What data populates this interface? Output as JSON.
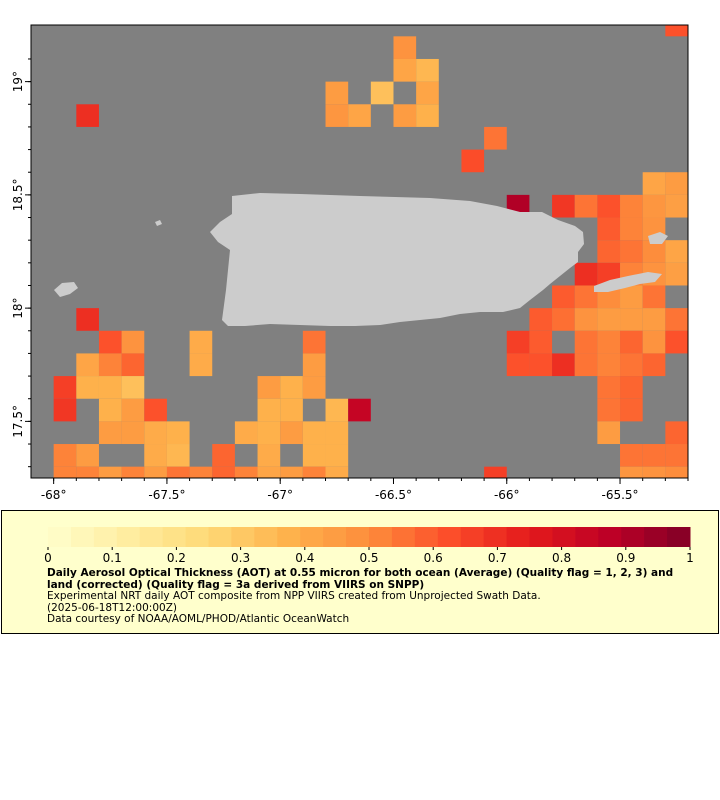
{
  "map": {
    "lon_range": [
      -68.1,
      -65.2
    ],
    "lat_range": [
      17.25,
      19.25
    ],
    "x_ticks": [
      {
        "value": -68,
        "label": "-68°"
      },
      {
        "value": -67.5,
        "label": "-67.5°"
      },
      {
        "value": -67,
        "label": "-67°"
      },
      {
        "value": -66.5,
        "label": "-66.5°"
      },
      {
        "value": -66,
        "label": "-66°"
      },
      {
        "value": -65.5,
        "label": "-65.5°"
      }
    ],
    "y_ticks": [
      {
        "value": 19,
        "label": "19°"
      },
      {
        "value": 18.5,
        "label": "18.5°"
      },
      {
        "value": 18,
        "label": "18°"
      },
      {
        "value": 17.5,
        "label": "17.5°"
      }
    ],
    "colors": {
      "no_data": "#808080",
      "land": "#cccccc",
      "frame": "#000000"
    }
  },
  "legend": {
    "cb_ticks": [
      "0",
      "0.1",
      "0.2",
      "0.3",
      "0.4",
      "0.5",
      "0.6",
      "0.7",
      "0.8",
      "0.9",
      "1"
    ],
    "title": "Daily Aerosol Optical Thickness (AOT) at 0.55 micron for both ocean (Average) (Quality flag = 1, 2, 3) and land (corrected) (Quality flag = 3a derived from VIIRS on SNPP)",
    "line1": "Experimental NRT daily AOT composite from NPP VIIRS created from Unprojected Swath Data.",
    "line2": "(2025-06-18T12:00:00Z)",
    "line3": "Data courtesy of NOAA/AOML/PHOD/Atlantic OceanWatch"
  },
  "chart_data": {
    "type": "heatmap",
    "cell_size_deg": 0.1,
    "value_range": [
      0,
      1
    ],
    "cells": [
      [
        -66.45,
        19.15,
        0.48
      ],
      [
        -66.45,
        19.05,
        0.42
      ],
      [
        -66.35,
        19.05,
        0.36
      ],
      [
        -66.75,
        18.95,
        0.45
      ],
      [
        -66.55,
        18.95,
        0.33
      ],
      [
        -66.35,
        18.95,
        0.42
      ],
      [
        -66.75,
        18.85,
        0.47
      ],
      [
        -66.65,
        18.85,
        0.42
      ],
      [
        -66.45,
        18.85,
        0.45
      ],
      [
        -66.35,
        18.85,
        0.38
      ],
      [
        -67.85,
        18.85,
        0.7
      ],
      [
        -66.05,
        18.75,
        0.55
      ],
      [
        -66.15,
        18.65,
        0.63
      ],
      [
        -65.25,
        19.25,
        0.62
      ],
      [
        -65.35,
        18.55,
        0.42
      ],
      [
        -65.25,
        18.55,
        0.45
      ],
      [
        -65.95,
        18.45,
        0.9
      ],
      [
        -65.75,
        18.45,
        0.68
      ],
      [
        -65.65,
        18.45,
        0.55
      ],
      [
        -65.55,
        18.45,
        0.62
      ],
      [
        -65.45,
        18.45,
        0.52
      ],
      [
        -65.35,
        18.45,
        0.47
      ],
      [
        -65.25,
        18.45,
        0.44
      ],
      [
        -65.55,
        18.35,
        0.6
      ],
      [
        -65.45,
        18.35,
        0.52
      ],
      [
        -65.35,
        18.35,
        0.48
      ],
      [
        -65.55,
        18.25,
        0.58
      ],
      [
        -65.45,
        18.25,
        0.55
      ],
      [
        -65.35,
        18.25,
        0.5
      ],
      [
        -65.25,
        18.25,
        0.42
      ],
      [
        -65.65,
        18.15,
        0.7
      ],
      [
        -65.55,
        18.15,
        0.66
      ],
      [
        -65.45,
        18.15,
        0.52
      ],
      [
        -65.35,
        18.15,
        0.48
      ],
      [
        -65.25,
        18.15,
        0.44
      ],
      [
        -65.75,
        18.05,
        0.6
      ],
      [
        -65.65,
        18.05,
        0.55
      ],
      [
        -65.55,
        18.05,
        0.5
      ],
      [
        -65.45,
        18.05,
        0.45
      ],
      [
        -65.35,
        18.05,
        0.55
      ],
      [
        -65.85,
        17.95,
        0.6
      ],
      [
        -65.75,
        17.95,
        0.56
      ],
      [
        -65.65,
        17.95,
        0.48
      ],
      [
        -65.55,
        17.95,
        0.45
      ],
      [
        -65.45,
        17.95,
        0.45
      ],
      [
        -65.35,
        17.95,
        0.45
      ],
      [
        -65.25,
        17.95,
        0.55
      ],
      [
        -65.95,
        17.85,
        0.66
      ],
      [
        -65.85,
        17.85,
        0.6
      ],
      [
        -65.65,
        17.85,
        0.55
      ],
      [
        -65.55,
        17.85,
        0.52
      ],
      [
        -65.45,
        17.85,
        0.58
      ],
      [
        -65.35,
        17.85,
        0.48
      ],
      [
        -65.25,
        17.85,
        0.62
      ],
      [
        -65.95,
        17.75,
        0.62
      ],
      [
        -65.85,
        17.75,
        0.62
      ],
      [
        -65.75,
        17.75,
        0.7
      ],
      [
        -65.65,
        17.75,
        0.55
      ],
      [
        -65.55,
        17.75,
        0.52
      ],
      [
        -65.45,
        17.75,
        0.55
      ],
      [
        -65.35,
        17.75,
        0.58
      ],
      [
        -65.55,
        17.65,
        0.55
      ],
      [
        -65.45,
        17.65,
        0.58
      ],
      [
        -65.55,
        17.55,
        0.55
      ],
      [
        -65.45,
        17.55,
        0.58
      ],
      [
        -65.55,
        17.45,
        0.45
      ],
      [
        -65.45,
        17.35,
        0.55
      ],
      [
        -65.25,
        17.45,
        0.58
      ],
      [
        -65.35,
        17.35,
        0.55
      ],
      [
        -65.25,
        17.35,
        0.55
      ],
      [
        -65.45,
        17.25,
        0.47
      ],
      [
        -65.35,
        17.25,
        0.48
      ],
      [
        -65.25,
        17.25,
        0.5
      ],
      [
        -67.85,
        17.95,
        0.7
      ],
      [
        -67.75,
        17.85,
        0.62
      ],
      [
        -67.65,
        17.85,
        0.48
      ],
      [
        -67.85,
        17.75,
        0.42
      ],
      [
        -67.75,
        17.75,
        0.52
      ],
      [
        -67.65,
        17.75,
        0.58
      ],
      [
        -67.95,
        17.65,
        0.66
      ],
      [
        -67.85,
        17.65,
        0.38
      ],
      [
        -67.75,
        17.65,
        0.38
      ],
      [
        -67.65,
        17.65,
        0.33
      ],
      [
        -67.95,
        17.55,
        0.68
      ],
      [
        -67.75,
        17.55,
        0.38
      ],
      [
        -67.65,
        17.55,
        0.45
      ],
      [
        -67.55,
        17.55,
        0.62
      ],
      [
        -67.75,
        17.45,
        0.45
      ],
      [
        -67.65,
        17.45,
        0.45
      ],
      [
        -67.55,
        17.45,
        0.4
      ],
      [
        -67.45,
        17.45,
        0.38
      ],
      [
        -67.95,
        17.35,
        0.52
      ],
      [
        -67.85,
        17.35,
        0.45
      ],
      [
        -67.55,
        17.35,
        0.4
      ],
      [
        -67.45,
        17.35,
        0.36
      ],
      [
        -67.25,
        17.35,
        0.58
      ],
      [
        -67.95,
        17.25,
        0.52
      ],
      [
        -67.85,
        17.25,
        0.52
      ],
      [
        -67.75,
        17.25,
        0.45
      ],
      [
        -67.65,
        17.25,
        0.52
      ],
      [
        -67.55,
        17.25,
        0.45
      ],
      [
        -67.45,
        17.25,
        0.55
      ],
      [
        -67.35,
        17.25,
        0.52
      ],
      [
        -67.25,
        17.25,
        0.58
      ],
      [
        -67.15,
        17.25,
        0.52
      ],
      [
        -67.35,
        17.85,
        0.4
      ],
      [
        -67.35,
        17.75,
        0.4
      ],
      [
        -67.05,
        17.65,
        0.45
      ],
      [
        -66.95,
        17.65,
        0.38
      ],
      [
        -66.85,
        17.75,
        0.45
      ],
      [
        -66.85,
        17.85,
        0.55
      ],
      [
        -67.05,
        17.55,
        0.38
      ],
      [
        -66.95,
        17.55,
        0.38
      ],
      [
        -66.85,
        17.65,
        0.45
      ],
      [
        -66.75,
        17.55,
        0.36
      ],
      [
        -66.65,
        17.55,
        0.85
      ],
      [
        -67.15,
        17.45,
        0.4
      ],
      [
        -67.05,
        17.45,
        0.38
      ],
      [
        -66.95,
        17.45,
        0.45
      ],
      [
        -66.85,
        17.45,
        0.38
      ],
      [
        -66.75,
        17.45,
        0.38
      ],
      [
        -67.05,
        17.35,
        0.4
      ],
      [
        -66.85,
        17.35,
        0.38
      ],
      [
        -66.75,
        17.35,
        0.38
      ],
      [
        -67.05,
        17.25,
        0.42
      ],
      [
        -66.95,
        17.25,
        0.45
      ],
      [
        -66.85,
        17.25,
        0.52
      ],
      [
        -66.75,
        17.25,
        0.4
      ],
      [
        -66.05,
        17.25,
        0.66
      ]
    ]
  }
}
